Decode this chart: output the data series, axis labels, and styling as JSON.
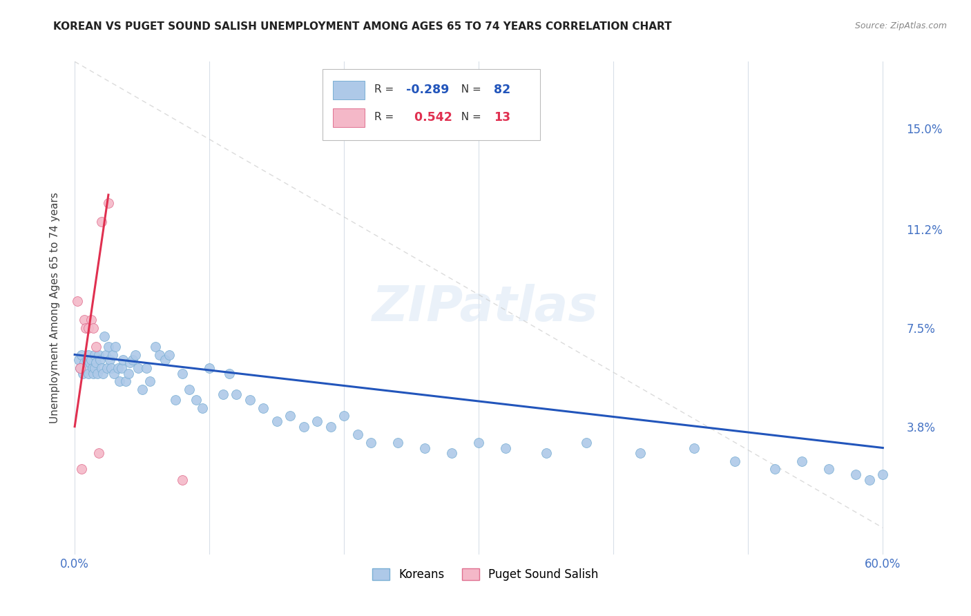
{
  "title": "KOREAN VS PUGET SOUND SALISH UNEMPLOYMENT AMONG AGES 65 TO 74 YEARS CORRELATION CHART",
  "source": "Source: ZipAtlas.com",
  "ylabel": "Unemployment Among Ages 65 to 74 years",
  "xlim": [
    -0.005,
    0.615
  ],
  "ylim": [
    -0.01,
    0.175
  ],
  "xtick_positions": [
    0.0,
    0.1,
    0.2,
    0.3,
    0.4,
    0.5,
    0.6
  ],
  "xticklabels": [
    "0.0%",
    "",
    "",
    "",
    "",
    "",
    "60.0%"
  ],
  "ytick_positions": [
    0.038,
    0.075,
    0.112,
    0.15
  ],
  "ytick_labels": [
    "3.8%",
    "7.5%",
    "11.2%",
    "15.0%"
  ],
  "korean_color": "#aec9e8",
  "korean_edge": "#7aafd4",
  "puget_color": "#f4b8c8",
  "puget_edge": "#e07090",
  "trend_korean_color": "#2255bb",
  "trend_puget_color": "#e03050",
  "trend_diag_color": "#cccccc",
  "legend_korean_label": "Koreans",
  "legend_puget_label": "Puget Sound Salish",
  "R_korean": -0.289,
  "N_korean": 82,
  "R_puget": 0.542,
  "N_puget": 13,
  "korean_x": [
    0.003,
    0.004,
    0.005,
    0.006,
    0.007,
    0.008,
    0.009,
    0.01,
    0.01,
    0.011,
    0.012,
    0.013,
    0.014,
    0.015,
    0.015,
    0.016,
    0.017,
    0.018,
    0.019,
    0.02,
    0.021,
    0.022,
    0.023,
    0.024,
    0.025,
    0.026,
    0.027,
    0.028,
    0.029,
    0.03,
    0.032,
    0.033,
    0.035,
    0.036,
    0.038,
    0.04,
    0.041,
    0.043,
    0.045,
    0.047,
    0.05,
    0.053,
    0.056,
    0.06,
    0.063,
    0.067,
    0.07,
    0.075,
    0.08,
    0.085,
    0.09,
    0.095,
    0.1,
    0.11,
    0.115,
    0.12,
    0.13,
    0.14,
    0.15,
    0.16,
    0.17,
    0.18,
    0.19,
    0.2,
    0.21,
    0.22,
    0.24,
    0.26,
    0.28,
    0.3,
    0.32,
    0.35,
    0.38,
    0.42,
    0.46,
    0.49,
    0.52,
    0.54,
    0.56,
    0.58,
    0.59,
    0.6
  ],
  "korean_y": [
    0.063,
    0.06,
    0.065,
    0.058,
    0.062,
    0.06,
    0.063,
    0.065,
    0.058,
    0.062,
    0.063,
    0.06,
    0.058,
    0.065,
    0.06,
    0.062,
    0.058,
    0.065,
    0.063,
    0.06,
    0.058,
    0.072,
    0.065,
    0.06,
    0.068,
    0.063,
    0.06,
    0.065,
    0.058,
    0.068,
    0.06,
    0.055,
    0.06,
    0.063,
    0.055,
    0.058,
    0.062,
    0.063,
    0.065,
    0.06,
    0.052,
    0.06,
    0.055,
    0.068,
    0.065,
    0.063,
    0.065,
    0.048,
    0.058,
    0.052,
    0.048,
    0.045,
    0.06,
    0.05,
    0.058,
    0.05,
    0.048,
    0.045,
    0.04,
    0.042,
    0.038,
    0.04,
    0.038,
    0.042,
    0.035,
    0.032,
    0.032,
    0.03,
    0.028,
    0.032,
    0.03,
    0.028,
    0.032,
    0.028,
    0.03,
    0.025,
    0.022,
    0.025,
    0.022,
    0.02,
    0.018,
    0.02
  ],
  "puget_x": [
    0.002,
    0.004,
    0.005,
    0.007,
    0.008,
    0.01,
    0.012,
    0.014,
    0.016,
    0.018,
    0.02,
    0.025,
    0.08
  ],
  "puget_y": [
    0.085,
    0.06,
    0.022,
    0.078,
    0.075,
    0.075,
    0.078,
    0.075,
    0.068,
    0.028,
    0.115,
    0.122,
    0.018
  ],
  "background_color": "#ffffff",
  "grid_color": "#d8dfe8",
  "marker_size": 100
}
